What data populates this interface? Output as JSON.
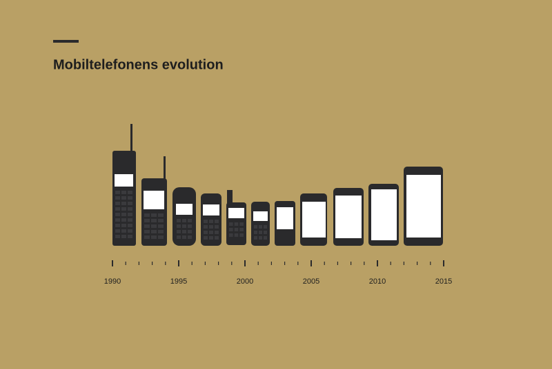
{
  "chart_data": {
    "type": "timeline",
    "title": "Mobiltelefonens evolution",
    "xlim": [
      1990,
      2015
    ],
    "xticks": [
      1990,
      1995,
      2000,
      2005,
      2010,
      2015
    ],
    "color": "#2a2a2c"
  }
}
